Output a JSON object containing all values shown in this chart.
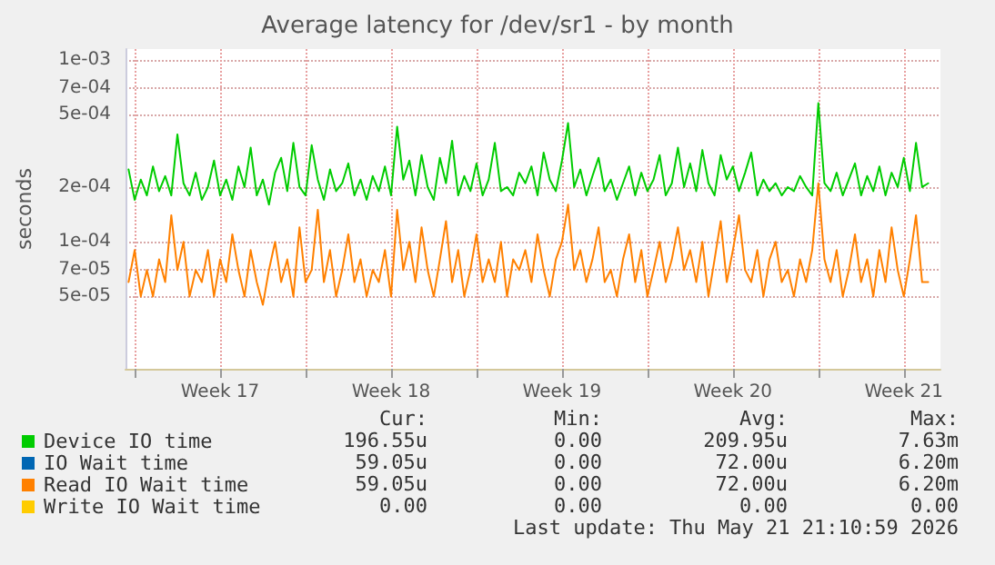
{
  "chart_data": {
    "type": "line",
    "title": "Average latency for /dev/sr1 - by month",
    "ylabel": "seconds",
    "log": "y",
    "grid": true,
    "legend": "bottom",
    "marker": "none",
    "line_style": "solid",
    "xlim": [
      "2026-04-19T15:00",
      "2026-05-23T00:00"
    ],
    "xticks": [
      {
        "value": "2026-04-20T00:00",
        "label": null
      },
      {
        "value": "2026-04-23T12:00",
        "label": "Week 17"
      },
      {
        "value": "2026-04-27T00:00",
        "label": null
      },
      {
        "value": "2026-04-30T12:00",
        "label": "Week 18"
      },
      {
        "value": "2026-05-04T00:00",
        "label": null
      },
      {
        "value": "2026-05-07T12:00",
        "label": "Week 19"
      },
      {
        "value": "2026-05-11T00:00",
        "label": null
      },
      {
        "value": "2026-05-14T12:00",
        "label": "Week 20"
      },
      {
        "value": "2026-05-18T00:00",
        "label": null
      },
      {
        "value": "2026-05-21T12:00",
        "label": "Week 21"
      }
    ],
    "ylim": [
      2e-05,
      0.00115
    ],
    "yticks": [
      {
        "value": 5e-05,
        "label": "5e-05"
      },
      {
        "value": 7e-05,
        "label": "7e-05"
      },
      {
        "value": 0.0001,
        "label": "1e-04"
      },
      {
        "value": 0.0002,
        "label": "2e-04"
      },
      {
        "value": 0.0005,
        "label": "5e-04"
      },
      {
        "value": 0.0007,
        "label": "7e-04"
      },
      {
        "value": 0.001,
        "label": "1e-03"
      }
    ],
    "x": [
      "2026-04-19T18:00",
      "2026-04-20T00:00",
      "2026-04-20T06:00",
      "2026-04-20T12:00",
      "2026-04-20T18:00",
      "2026-04-21T00:00",
      "2026-04-21T06:00",
      "2026-04-21T12:00",
      "2026-04-21T18:00",
      "2026-04-22T00:00",
      "2026-04-22T06:00",
      "2026-04-22T12:00",
      "2026-04-22T18:00",
      "2026-04-23T00:00",
      "2026-04-23T06:00",
      "2026-04-23T12:00",
      "2026-04-23T18:00",
      "2026-04-24T00:00",
      "2026-04-24T06:00",
      "2026-04-24T12:00",
      "2026-04-24T18:00",
      "2026-04-25T00:00",
      "2026-04-25T06:00",
      "2026-04-25T12:00",
      "2026-04-25T18:00",
      "2026-04-26T00:00",
      "2026-04-26T06:00",
      "2026-04-26T12:00",
      "2026-04-26T18:00",
      "2026-04-27T00:00",
      "2026-04-27T06:00",
      "2026-04-27T12:00",
      "2026-04-27T18:00",
      "2026-04-28T00:00",
      "2026-04-28T06:00",
      "2026-04-28T12:00",
      "2026-04-28T18:00",
      "2026-04-29T00:00",
      "2026-04-29T06:00",
      "2026-04-29T12:00",
      "2026-04-29T18:00",
      "2026-04-30T00:00",
      "2026-04-30T06:00",
      "2026-04-30T12:00",
      "2026-04-30T18:00",
      "2026-05-01T00:00",
      "2026-05-01T06:00",
      "2026-05-01T12:00",
      "2026-05-01T18:00",
      "2026-05-02T00:00",
      "2026-05-02T06:00",
      "2026-05-02T12:00",
      "2026-05-02T18:00",
      "2026-05-03T00:00",
      "2026-05-03T06:00",
      "2026-05-03T12:00",
      "2026-05-03T18:00",
      "2026-05-04T00:00",
      "2026-05-04T06:00",
      "2026-05-04T12:00",
      "2026-05-04T18:00",
      "2026-05-05T00:00",
      "2026-05-05T06:00",
      "2026-05-05T12:00",
      "2026-05-05T18:00",
      "2026-05-06T00:00",
      "2026-05-06T06:00",
      "2026-05-06T12:00",
      "2026-05-06T18:00",
      "2026-05-07T00:00",
      "2026-05-07T06:00",
      "2026-05-07T12:00",
      "2026-05-07T18:00",
      "2026-05-08T00:00",
      "2026-05-08T06:00",
      "2026-05-08T12:00",
      "2026-05-08T18:00",
      "2026-05-09T00:00",
      "2026-05-09T06:00",
      "2026-05-09T12:00",
      "2026-05-09T18:00",
      "2026-05-10T00:00",
      "2026-05-10T06:00",
      "2026-05-10T12:00",
      "2026-05-10T18:00",
      "2026-05-11T00:00",
      "2026-05-11T06:00",
      "2026-05-11T12:00",
      "2026-05-11T18:00",
      "2026-05-12T00:00",
      "2026-05-12T06:00",
      "2026-05-12T12:00",
      "2026-05-12T18:00",
      "2026-05-13T00:00",
      "2026-05-13T06:00",
      "2026-05-13T12:00",
      "2026-05-13T18:00",
      "2026-05-14T00:00",
      "2026-05-14T06:00",
      "2026-05-14T12:00",
      "2026-05-14T18:00",
      "2026-05-15T00:00",
      "2026-05-15T06:00",
      "2026-05-15T12:00",
      "2026-05-15T18:00",
      "2026-05-16T00:00",
      "2026-05-16T06:00",
      "2026-05-16T12:00",
      "2026-05-16T18:00",
      "2026-05-17T00:00",
      "2026-05-17T06:00",
      "2026-05-17T12:00",
      "2026-05-17T18:00",
      "2026-05-18T00:00",
      "2026-05-18T06:00",
      "2026-05-18T12:00",
      "2026-05-18T18:00",
      "2026-05-19T00:00",
      "2026-05-19T06:00",
      "2026-05-19T12:00",
      "2026-05-19T18:00",
      "2026-05-20T00:00",
      "2026-05-20T06:00",
      "2026-05-20T12:00",
      "2026-05-20T18:00",
      "2026-05-21T00:00",
      "2026-05-21T06:00",
      "2026-05-21T12:00",
      "2026-05-21T18:00",
      "2026-05-22T00:00",
      "2026-05-22T06:00",
      "2026-05-22T12:00"
    ],
    "series": [
      {
        "name": "Device IO time",
        "color": "#00cc00",
        "values": [
          0.00025,
          0.00017,
          0.00022,
          0.00018,
          0.00026,
          0.00019,
          0.00023,
          0.00018,
          0.00039,
          0.00021,
          0.00018,
          0.00024,
          0.00017,
          0.0002,
          0.00028,
          0.00018,
          0.00022,
          0.00017,
          0.00026,
          0.0002,
          0.00033,
          0.00018,
          0.00022,
          0.00016,
          0.00024,
          0.00029,
          0.00019,
          0.00035,
          0.0002,
          0.00018,
          0.00034,
          0.00022,
          0.00017,
          0.00025,
          0.00019,
          0.00021,
          0.00027,
          0.00018,
          0.00022,
          0.00017,
          0.00023,
          0.00019,
          0.00026,
          0.00018,
          0.00043,
          0.00022,
          0.00028,
          0.00018,
          0.0003,
          0.0002,
          0.00017,
          0.00029,
          0.00021,
          0.00036,
          0.00018,
          0.00023,
          0.00019,
          0.00027,
          0.00018,
          0.00022,
          0.00035,
          0.00019,
          0.0002,
          0.00018,
          0.00024,
          0.00021,
          0.00026,
          0.00018,
          0.00031,
          0.00022,
          0.00019,
          0.00028,
          0.00045,
          0.0002,
          0.00025,
          0.00018,
          0.00023,
          0.00029,
          0.00019,
          0.00022,
          0.00017,
          0.00021,
          0.00026,
          0.00018,
          0.00024,
          0.00019,
          0.00022,
          0.0003,
          0.00018,
          0.00021,
          0.00033,
          0.0002,
          0.00027,
          0.00019,
          0.00032,
          0.00021,
          0.00018,
          0.0003,
          0.00022,
          0.00026,
          0.00019,
          0.00024,
          0.00031,
          0.00018,
          0.00022,
          0.00019,
          0.00021,
          0.00018,
          0.0002,
          0.00019,
          0.00023,
          0.0002,
          0.00018,
          0.00058,
          0.00021,
          0.00019,
          0.00024,
          0.00018,
          0.00022,
          0.00027,
          0.00018,
          0.00023,
          0.00019,
          0.00026,
          0.00018,
          0.00024,
          0.0002,
          0.00029,
          0.00019,
          0.00035,
          0.0002,
          0.00021
        ]
      },
      {
        "name": "IO Wait time",
        "color": "#0066b3",
        "values": [
          null,
          null,
          null,
          null,
          null,
          null,
          null,
          null,
          null,
          null,
          null,
          null,
          null,
          null,
          null,
          null,
          null,
          null,
          null,
          null,
          null,
          null,
          null,
          null,
          null,
          null,
          null,
          null,
          null,
          null,
          null,
          null,
          null,
          null,
          null,
          null,
          null,
          null,
          null,
          null,
          null,
          null,
          null,
          null,
          null,
          null,
          null,
          null,
          null,
          null,
          null,
          null,
          null,
          null,
          null,
          null,
          null,
          null,
          null,
          null,
          null,
          null,
          null,
          null,
          null,
          null,
          null,
          null,
          null,
          null,
          null,
          null,
          null,
          null,
          null,
          null,
          null,
          null,
          null,
          null,
          null,
          null,
          null,
          null,
          null,
          null,
          null,
          null,
          null,
          null,
          null,
          null,
          null,
          null,
          null,
          null,
          null,
          null,
          null,
          null,
          null,
          null,
          null,
          null,
          null,
          null,
          null,
          null,
          null,
          null,
          null,
          null,
          null,
          null,
          null,
          null,
          null,
          null,
          null,
          null,
          null,
          null,
          null,
          null,
          null,
          null,
          null,
          null,
          null,
          null,
          null,
          null
        ]
      },
      {
        "name": "Read IO Wait time",
        "color": "#ff8000",
        "values": [
          6e-05,
          9e-05,
          5e-05,
          7e-05,
          5e-05,
          8e-05,
          6e-05,
          0.00014,
          7e-05,
          0.0001,
          5e-05,
          7e-05,
          6e-05,
          9e-05,
          5e-05,
          8e-05,
          6e-05,
          0.00011,
          7e-05,
          5e-05,
          9e-05,
          6e-05,
          4.5e-05,
          7e-05,
          0.0001,
          6e-05,
          8e-05,
          5e-05,
          0.00012,
          6e-05,
          7e-05,
          0.00015,
          6e-05,
          9e-05,
          5e-05,
          7e-05,
          0.00011,
          6e-05,
          8e-05,
          5e-05,
          7e-05,
          6e-05,
          9e-05,
          5e-05,
          0.00015,
          7e-05,
          0.0001,
          6e-05,
          0.00012,
          7e-05,
          5e-05,
          8e-05,
          0.00013,
          6e-05,
          9e-05,
          5e-05,
          7e-05,
          0.00011,
          6e-05,
          8e-05,
          6e-05,
          0.0001,
          5e-05,
          8e-05,
          7e-05,
          9e-05,
          6e-05,
          0.00011,
          7e-05,
          5e-05,
          8e-05,
          0.0001,
          0.00016,
          7e-05,
          9e-05,
          6e-05,
          8e-05,
          0.00012,
          6e-05,
          7e-05,
          5e-05,
          8e-05,
          0.00011,
          6e-05,
          9e-05,
          5e-05,
          7e-05,
          0.0001,
          6e-05,
          8e-05,
          0.00012,
          7e-05,
          9e-05,
          6e-05,
          0.0001,
          5e-05,
          8e-05,
          0.00013,
          6e-05,
          9e-05,
          0.00014,
          7e-05,
          6e-05,
          9e-05,
          5e-05,
          8e-05,
          0.0001,
          6e-05,
          7e-05,
          5e-05,
          8e-05,
          6e-05,
          9e-05,
          0.00021,
          8e-05,
          6e-05,
          9e-05,
          5e-05,
          7e-05,
          0.00011,
          6e-05,
          8e-05,
          5e-05,
          9e-05,
          6e-05,
          0.00012,
          7e-05,
          5e-05,
          8e-05,
          0.00014,
          6e-05,
          6e-05
        ]
      },
      {
        "name": "Write IO Wait time",
        "color": "#ffcc00",
        "values": [
          null,
          null,
          null,
          null,
          null,
          null,
          null,
          null,
          null,
          null,
          null,
          null,
          null,
          null,
          null,
          null,
          null,
          null,
          null,
          null,
          null,
          null,
          null,
          null,
          null,
          null,
          null,
          null,
          null,
          null,
          null,
          null,
          null,
          null,
          null,
          null,
          null,
          null,
          null,
          null,
          null,
          null,
          null,
          null,
          null,
          null,
          null,
          null,
          null,
          null,
          null,
          null,
          null,
          null,
          null,
          null,
          null,
          null,
          null,
          null,
          null,
          null,
          null,
          null,
          null,
          null,
          null,
          null,
          null,
          null,
          null,
          null,
          null,
          null,
          null,
          null,
          null,
          null,
          null,
          null,
          null,
          null,
          null,
          null,
          null,
          null,
          null,
          null,
          null,
          null,
          null,
          null,
          null,
          null,
          null,
          null,
          null,
          null,
          null,
          null,
          null,
          null,
          null,
          null,
          null,
          null,
          null,
          null,
          null,
          null,
          null,
          null,
          null,
          null,
          null,
          null,
          null,
          null,
          null,
          null,
          null,
          null,
          null,
          null,
          null,
          null,
          null,
          null,
          null,
          null,
          null,
          null
        ]
      }
    ],
    "annotations": [
      "Cur:",
      "Min:",
      "Avg:",
      "Max:",
      "196.55u",
      "0.00",
      "209.95u",
      "7.63m",
      "59.05u",
      "0.00",
      "72.00u",
      "6.20m",
      "59.05u",
      "0.00",
      "72.00u",
      "6.20m",
      "0.00",
      "0.00",
      "0.00",
      "0.00",
      "Last update: Thu May 21 21:10:59 2026"
    ]
  }
}
